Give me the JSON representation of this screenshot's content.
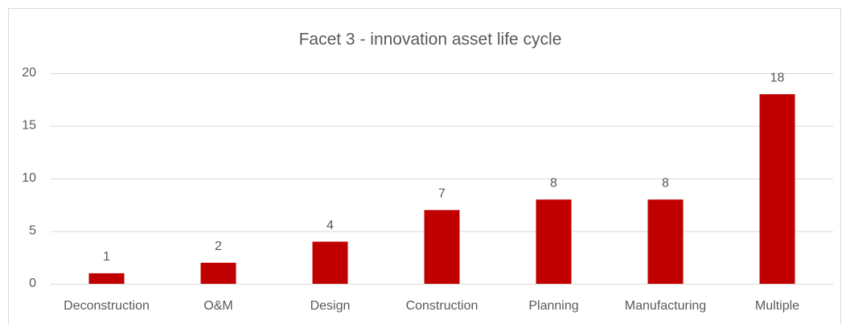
{
  "chart_data": {
    "type": "bar",
    "title": "Facet 3 - innovation asset life cycle",
    "categories": [
      "Deconstruction",
      "O&M",
      "Design",
      "Construction",
      "Planning",
      "Manufacturing",
      "Multiple"
    ],
    "values": [
      1,
      2,
      4,
      7,
      8,
      8,
      18
    ],
    "color": "#c00000",
    "ylim": [
      0,
      20
    ],
    "yticks": [
      0,
      5,
      10,
      15,
      20
    ],
    "grid": true
  }
}
